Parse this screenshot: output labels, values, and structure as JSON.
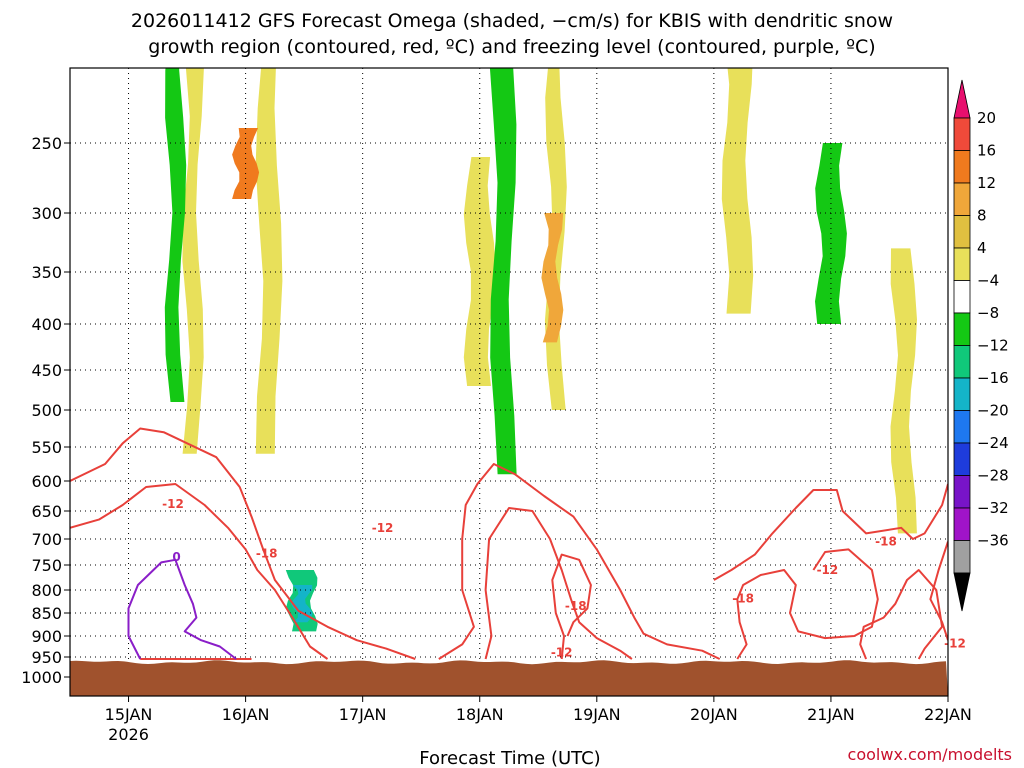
{
  "chart_data": {
    "type": "heatmap",
    "title_lines": [
      "2026011412 GFS Forecast Omega (shaded, −cm/s) for KBIS with dendritic snow",
      "growth region (contoured, red, ºC) and freezing level (contoured, purple, ºC)"
    ],
    "xlabel": "Forecast Time (UTC)",
    "credit": "coolwx.com/modelts",
    "x_ticks": [
      {
        "day": 0,
        "label": "15JAN",
        "sublabel": "2026"
      },
      {
        "day": 1,
        "label": "16JAN"
      },
      {
        "day": 2,
        "label": "17JAN"
      },
      {
        "day": 3,
        "label": "18JAN"
      },
      {
        "day": 4,
        "label": "19JAN"
      },
      {
        "day": 5,
        "label": "20JAN"
      },
      {
        "day": 6,
        "label": "21JAN"
      },
      {
        "day": 7,
        "label": "22JAN"
      }
    ],
    "xlim_days": [
      -0.5,
      7.0
    ],
    "y_axis": "pressure (hPa)",
    "y_ticks": [
      250,
      300,
      350,
      400,
      450,
      500,
      550,
      600,
      650,
      700,
      750,
      800,
      850,
      900,
      950,
      1000
    ],
    "ylim_hpa": [
      200,
      1035
    ],
    "surface_pressure_hpa": 963,
    "grid": "dotted",
    "colorbar": {
      "levels": [
        20,
        16,
        12,
        8,
        4,
        -4,
        -8,
        -12,
        -16,
        -20,
        -24,
        -28,
        -32,
        -36
      ],
      "colors": [
        "#e8106e",
        "#f04a3a",
        "#f07a1e",
        "#f0a73a",
        "#e0c040",
        "#e8e05a",
        "#ffffff",
        "#14c814",
        "#10c87a",
        "#14b4c8",
        "#1e78f0",
        "#1e3cdc",
        "#7814c8",
        "#a014c8",
        "#a0a0a0",
        "#000000"
      ]
    },
    "red_contour_labels": [
      {
        "text": "-12",
        "day": 0.38,
        "p": 638
      },
      {
        "text": "-18",
        "day": 1.18,
        "p": 728
      },
      {
        "text": "-12",
        "day": 2.17,
        "p": 680
      },
      {
        "text": "-18",
        "day": 3.82,
        "p": 835
      },
      {
        "text": "-12",
        "day": 3.7,
        "p": 939
      },
      {
        "text": "-18",
        "day": 5.25,
        "p": 818
      },
      {
        "text": "-12",
        "day": 5.97,
        "p": 760
      },
      {
        "text": "-18",
        "day": 6.47,
        "p": 705
      },
      {
        "text": "-12",
        "day": 7.06,
        "p": 918
      }
    ],
    "purple_contour_labels": [
      {
        "text": "0",
        "day": 0.41,
        "p": 735
      }
    ],
    "shaded_regions": [
      {
        "color": "#e8e05a",
        "day": 0.55,
        "p_top": 200,
        "p_bot": 560
      },
      {
        "color": "#e8e05a",
        "day": 1.2,
        "p_top": 150,
        "p_bot": 560
      },
      {
        "color": "#e8e05a",
        "day": 3.0,
        "p_top": 260,
        "p_bot": 470
      },
      {
        "color": "#e8e05a",
        "day": 3.65,
        "p_top": 190,
        "p_bot": 500
      },
      {
        "color": "#e8e05a",
        "day": 6.62,
        "p_top": 330,
        "p_bot": 690
      },
      {
        "color": "#e8e05a",
        "day": 5.2,
        "p_top": 160,
        "p_bot": 390
      },
      {
        "color": "#f0a73a",
        "day": 3.62,
        "p_top": 300,
        "p_bot": 420
      },
      {
        "color": "#f07a1e",
        "day": 1.0,
        "p_top": 240,
        "p_bot": 290
      },
      {
        "color": "#14c814",
        "day": 6.0,
        "p_top": 250,
        "p_bot": 400
      },
      {
        "color": "#14c814",
        "day": 0.4,
        "p_top": 170,
        "p_bot": 490
      },
      {
        "color": "#14c814",
        "day": 3.2,
        "p_top": 160,
        "p_bot": 590
      },
      {
        "color": "#10c87a",
        "day": 1.48,
        "p_top": 760,
        "p_bot": 890
      },
      {
        "color": "#14b4c8",
        "day": 1.48,
        "p_top": 790,
        "p_bot": 870
      }
    ]
  }
}
